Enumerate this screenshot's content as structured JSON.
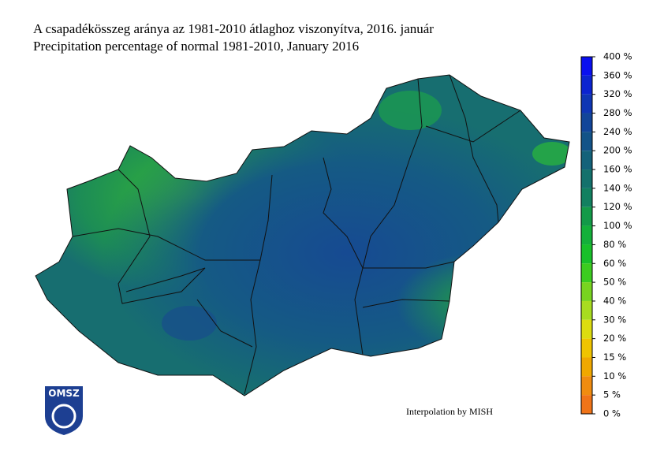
{
  "title_hu": "A csapadékösszeg aránya az 1981-2010 átlaghoz viszonyítva, 2016. január",
  "title_en": "Precipitation percentage of normal 1981-2010, January 2016",
  "legend": {
    "labels": [
      "400 %",
      "360 %",
      "320 %",
      "280 %",
      "240 %",
      "200 %",
      "160 %",
      "140 %",
      "120 %",
      "100 %",
      "80 %",
      "60 %",
      "50 %",
      "40 %",
      "30 %",
      "20 %",
      "15 %",
      "10 %",
      "5 %",
      "0 %"
    ],
    "colors": [
      "#0a10f0",
      "#0c24d0",
      "#0f36b4",
      "#124599",
      "#135388",
      "#14627a",
      "#14716c",
      "#128060",
      "#139a48",
      "#14b03a",
      "#18c02a",
      "#3ccc20",
      "#78d420",
      "#a8dc20",
      "#dcdc10",
      "#f0c400",
      "#f0a800",
      "#f08c10",
      "#f07418"
    ]
  },
  "logo": "OMSZ",
  "credit": "Interpolation by MISH"
}
